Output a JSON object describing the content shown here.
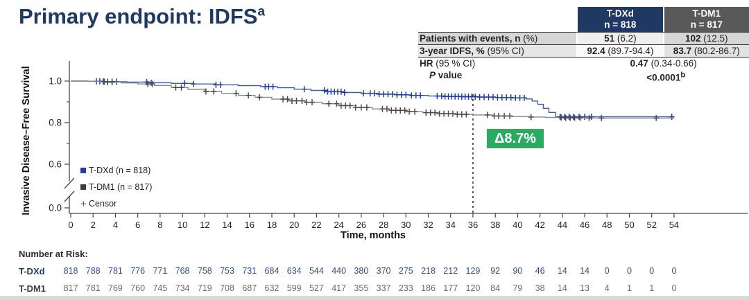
{
  "title": {
    "text": "Primary endpoint: IDFS",
    "superscript": "a"
  },
  "colors": {
    "navy": "#1f3864",
    "gray_header": "#595959",
    "green_badge": "#2baa63",
    "axis": "#444444",
    "tdxd_line": "#3c5da9",
    "tdxd_censor": "#1e3f9d",
    "tdm1_line": "#8a8a8a",
    "tdm1_censor": "#4a4a4a"
  },
  "results_table": {
    "col_tdxd": {
      "line1": "T-DXd",
      "line2": "n = 818"
    },
    "col_tdm1": {
      "line1": "T-DM1",
      "line2": "n = 817"
    },
    "rows": [
      {
        "label_bold": "Patients with events, n",
        "label_rest": " (%)",
        "tdxd_bold": "51",
        "tdxd_rest": " (6.2)",
        "tdm1_bold": "102",
        "tdm1_rest": " (12.5)"
      },
      {
        "label_bold": "3-year IDFS, %",
        "label_rest": " (95% CI)",
        "tdxd_bold": "92.4",
        "tdxd_rest": " (89.7-94.4)",
        "tdm1_bold": "83.7",
        "tdm1_rest": " (80.2-86.7)"
      }
    ],
    "hr_row": {
      "label_bold": "HR",
      "label_rest": " (95 % CI)",
      "value_bold": "0.47",
      "value_rest": " (0.34-0.66)"
    },
    "p_row": {
      "label_italic": "P",
      "label_rest": " value",
      "value": "<0.0001",
      "value_sup": "b"
    }
  },
  "legend": {
    "items": [
      {
        "label": "T-DXd (n = 818)",
        "color": "#1e3f9d",
        "symbol": "square"
      },
      {
        "label": "T-DM1 (n = 817)",
        "color": "#3f3f3f",
        "symbol": "square"
      },
      {
        "label": "Censor",
        "color": "#555555",
        "symbol": "+"
      }
    ]
  },
  "delta_badge": "Δ8.7%",
  "chart_data": {
    "type": "line",
    "subtype": "kaplan-meier-step",
    "xlabel": "Time, months",
    "ylabel": "Invasive Disease–Free Survival",
    "xlim": [
      0,
      55
    ],
    "x_ticks": [
      0,
      2,
      4,
      6,
      8,
      10,
      12,
      14,
      16,
      18,
      20,
      22,
      24,
      26,
      28,
      30,
      32,
      34,
      36,
      38,
      40,
      42,
      44,
      46,
      48,
      50,
      52,
      54
    ],
    "y_ticks": [
      {
        "label": "1.0",
        "value": 1.0
      },
      {
        "label": "0.8",
        "value": 0.8
      },
      {
        "label": "0.6",
        "value": 0.6
      },
      {
        "label": "0.0",
        "value": 0.0
      }
    ],
    "y_minor_ticks": [
      0.9,
      0.7
    ],
    "y_axis_break_between": [
      0.0,
      0.6
    ],
    "dashed_line_x": 36,
    "annotation": {
      "text": "Δ8.7%",
      "x": 38,
      "note": "difference between curves at 36 months: 92.4 - 83.7"
    },
    "series": [
      {
        "name": "T-DXd",
        "n": 818,
        "line_color": "#3c5da9",
        "censor_color": "#1e3f9d",
        "steps": [
          [
            0,
            1.0
          ],
          [
            1.5,
            0.999
          ],
          [
            3,
            0.997
          ],
          [
            5,
            0.995
          ],
          [
            7,
            0.992
          ],
          [
            9,
            0.989
          ],
          [
            11,
            0.986
          ],
          [
            13,
            0.982
          ],
          [
            15,
            0.978
          ],
          [
            17,
            0.973
          ],
          [
            18.5,
            0.968
          ],
          [
            20,
            0.961
          ],
          [
            21.5,
            0.955
          ],
          [
            23,
            0.949
          ],
          [
            24.5,
            0.945
          ],
          [
            26,
            0.941
          ],
          [
            27.5,
            0.937
          ],
          [
            29,
            0.934
          ],
          [
            30.5,
            0.931
          ],
          [
            32,
            0.928
          ],
          [
            33.5,
            0.926
          ],
          [
            35,
            0.925
          ],
          [
            36.5,
            0.923
          ],
          [
            38,
            0.921
          ],
          [
            39.5,
            0.919
          ],
          [
            40.8,
            0.914
          ],
          [
            41.3,
            0.904
          ],
          [
            41.8,
            0.888
          ],
          [
            42.3,
            0.869
          ],
          [
            42.8,
            0.849
          ],
          [
            43.4,
            0.828
          ],
          [
            54,
            0.828
          ]
        ],
        "censors": [
          2.3,
          2.6,
          3.0,
          3.3,
          3.7,
          4.1,
          6.8,
          7.2,
          10.2,
          11.0,
          13.0,
          13.4,
          17.4,
          17.7,
          18.1,
          20.9,
          22.7,
          23.0,
          23.3,
          23.6,
          23.9,
          24.2,
          24.5,
          26.2,
          26.8,
          27.2,
          27.6,
          28.0,
          28.4,
          28.8,
          29.2,
          29.6,
          30.0,
          30.5,
          30.9,
          31.3,
          32.8,
          33.2,
          33.5,
          33.8,
          34.1,
          34.4,
          34.7,
          35.0,
          35.3,
          35.6,
          35.9,
          36.2,
          36.6,
          37.0,
          37.4,
          37.8,
          38.2,
          38.6,
          39.0,
          39.4,
          39.8,
          40.2,
          40.6,
          43.8,
          44.2,
          44.6,
          45.0,
          45.5,
          46.0,
          46.6,
          53.8
        ]
      },
      {
        "name": "T-DM1",
        "n": 817,
        "line_color": "#8a8a8a",
        "censor_color": "#4a4a4a",
        "steps": [
          [
            0,
            1.0
          ],
          [
            1.5,
            0.998
          ],
          [
            3,
            0.995
          ],
          [
            4.5,
            0.991
          ],
          [
            6,
            0.986
          ],
          [
            7.5,
            0.979
          ],
          [
            9,
            0.969
          ],
          [
            10.5,
            0.96
          ],
          [
            12,
            0.95
          ],
          [
            13.5,
            0.941
          ],
          [
            15,
            0.931
          ],
          [
            16.5,
            0.922
          ],
          [
            18,
            0.913
          ],
          [
            19.5,
            0.905
          ],
          [
            21,
            0.898
          ],
          [
            22.5,
            0.891
          ],
          [
            24,
            0.882
          ],
          [
            25.5,
            0.873
          ],
          [
            27,
            0.866
          ],
          [
            28.5,
            0.859
          ],
          [
            30,
            0.853
          ],
          [
            31.5,
            0.848
          ],
          [
            33,
            0.843
          ],
          [
            34.5,
            0.84
          ],
          [
            36,
            0.837
          ],
          [
            37.8,
            0.832
          ],
          [
            39.5,
            0.829
          ],
          [
            41,
            0.827
          ],
          [
            42.5,
            0.825
          ],
          [
            44,
            0.823
          ],
          [
            46,
            0.822
          ],
          [
            54,
            0.822
          ]
        ],
        "censors": [
          2.9,
          3.3,
          3.7,
          6.9,
          7.3,
          9.4,
          9.9,
          12.1,
          12.8,
          14.8,
          15.9,
          16.9,
          19.0,
          19.4,
          19.8,
          20.2,
          20.7,
          21.1,
          21.6,
          23.1,
          23.8,
          24.2,
          24.6,
          25.0,
          25.5,
          26.0,
          26.5,
          27.9,
          28.3,
          28.7,
          29.1,
          29.5,
          29.9,
          30.3,
          30.8,
          31.8,
          32.2,
          32.6,
          33.0,
          33.4,
          33.8,
          34.2,
          34.6,
          35.0,
          35.4,
          37.3,
          37.9,
          38.3,
          38.8,
          39.3,
          41.2,
          43.9,
          44.3,
          44.7,
          45.1,
          45.6,
          46.4,
          47.5,
          52.4
        ]
      }
    ]
  },
  "number_at_risk": {
    "heading": "Number at Risk:",
    "rows": [
      {
        "label": "T-DXd",
        "label_color": "#1f3864",
        "value_color": "#2e4d8f",
        "values": [
          818,
          788,
          781,
          776,
          771,
          768,
          758,
          753,
          731,
          684,
          634,
          544,
          440,
          380,
          370,
          275,
          218,
          212,
          129,
          92,
          90,
          46,
          14,
          14,
          0,
          0,
          0,
          0
        ]
      },
      {
        "label": "T-DM1",
        "label_color": "#3d3d3d",
        "value_color": "#6a6a6a",
        "values": [
          817,
          781,
          769,
          760,
          745,
          734,
          719,
          708,
          687,
          632,
          599,
          527,
          417,
          355,
          337,
          233,
          186,
          177,
          120,
          84,
          79,
          38,
          14,
          13,
          4,
          1,
          1,
          0
        ]
      }
    ]
  }
}
